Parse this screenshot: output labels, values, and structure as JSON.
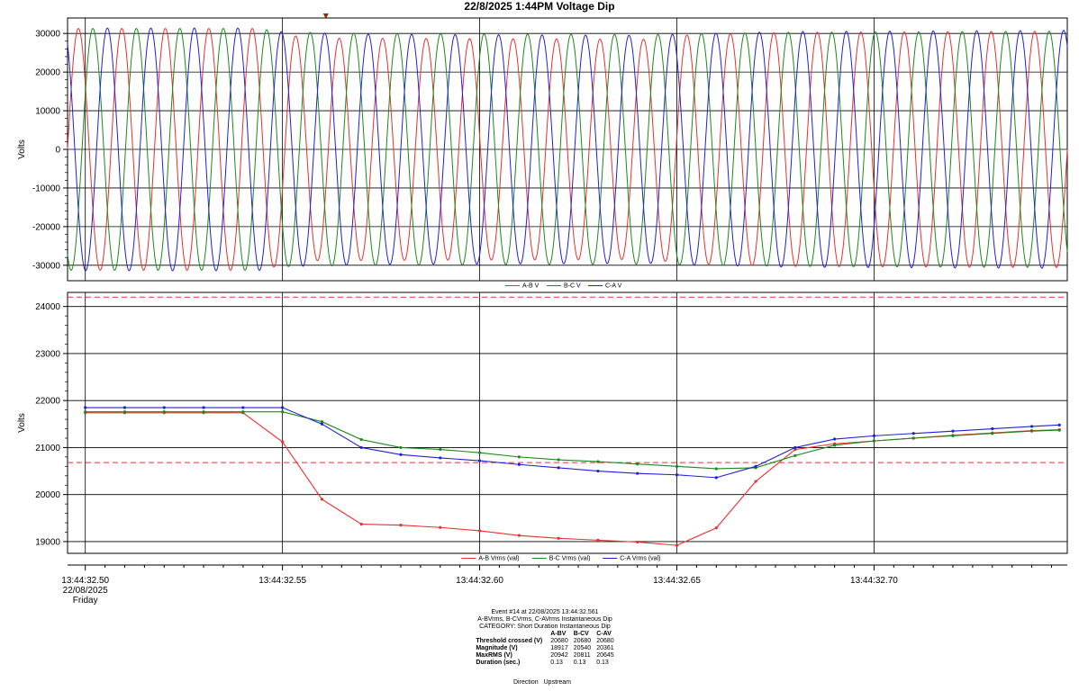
{
  "title": "22/8/2025 1:44PM Voltage Dip",
  "colors": {
    "ab": "#e83030",
    "bc": "#1a8a1a",
    "ca": "#2020d8",
    "threshold": "#e83030",
    "grid": "#000000",
    "frame": "#000000"
  },
  "chart_data": [
    {
      "type": "line",
      "name": "waveform",
      "ylabel": "Volts",
      "ylim": [
        -34000,
        34000
      ],
      "yticks": [
        -30000,
        -20000,
        -10000,
        0,
        10000,
        20000,
        30000
      ],
      "ytick_labels": [
        "-30000",
        "-20000",
        "-10000",
        "0",
        "10000",
        "20000",
        "30000"
      ],
      "grid": true,
      "legend": [
        "A-B V",
        "B-C V",
        "C-A V"
      ],
      "legend_placement": "bottom-center",
      "cycles": 23,
      "series": [
        {
          "name": "A-B V",
          "color": "#e83030",
          "phase_deg": 0,
          "amplitude_env": [
            [
              0,
              31300
            ],
            [
              0.19,
              31300
            ],
            [
              0.215,
              30000
            ],
            [
              0.24,
              28800
            ],
            [
              0.58,
              28500
            ],
            [
              0.62,
              29600
            ],
            [
              0.72,
              30300
            ],
            [
              1.0,
              30600
            ]
          ]
        },
        {
          "name": "B-C V",
          "color": "#1a8a1a",
          "phase_deg": 240,
          "amplitude_env": [
            [
              0,
              31300
            ],
            [
              0.19,
              31300
            ],
            [
              0.215,
              30400
            ],
            [
              0.3,
              30000
            ],
            [
              0.58,
              29700
            ],
            [
              0.62,
              29900
            ],
            [
              0.72,
              30300
            ],
            [
              1.0,
              30600
            ]
          ]
        },
        {
          "name": "C-A V",
          "color": "#2020d8",
          "phase_deg": 120,
          "amplitude_env": [
            [
              0,
              31400
            ],
            [
              0.19,
              31400
            ],
            [
              0.215,
              30400
            ],
            [
              0.3,
              29800
            ],
            [
              0.58,
              29500
            ],
            [
              0.62,
              29900
            ],
            [
              0.72,
              30500
            ],
            [
              1.0,
              30800
            ]
          ]
        }
      ]
    },
    {
      "type": "line",
      "name": "rms",
      "ylabel": "Volts",
      "ylim": [
        18750,
        24300
      ],
      "yticks": [
        19000,
        20000,
        21000,
        22000,
        23000,
        24000
      ],
      "ytick_labels": [
        "19000",
        "20000",
        "21000",
        "22000",
        "23000",
        "24000"
      ],
      "thresholds": [
        24200,
        20680
      ],
      "grid": true,
      "legend": [
        "A-B Vrms (val)",
        "B-C Vrms (val)",
        "C-A Vrms (val)"
      ],
      "legend_placement": "bottom-center",
      "x": [
        32.5,
        32.505,
        32.51,
        32.515,
        32.52,
        32.525,
        32.53,
        32.535,
        32.54,
        32.545,
        32.55,
        32.555,
        32.56,
        32.565,
        32.57,
        32.575,
        32.58,
        32.585,
        32.59,
        32.595,
        32.6,
        32.605,
        32.61,
        32.615,
        32.62,
        32.625,
        32.63,
        32.635,
        32.64,
        32.645,
        32.65,
        32.655,
        32.66,
        32.665,
        32.67,
        32.675,
        32.68,
        32.685,
        32.69,
        32.695,
        32.7,
        32.705,
        32.71,
        32.715,
        32.72,
        32.725,
        32.73,
        32.735,
        32.74,
        32.745
      ],
      "series": [
        {
          "name": "A-B Vrms (val)",
          "color": "#e83030",
          "points": [
            [
              32.5,
              21740
            ],
            [
              32.51,
              21740
            ],
            [
              32.52,
              21740
            ],
            [
              32.53,
              21740
            ],
            [
              32.54,
              21740
            ],
            [
              32.55,
              21120
            ],
            [
              32.56,
              19900
            ],
            [
              32.57,
              19370
            ],
            [
              32.58,
              19350
            ],
            [
              32.59,
              19300
            ],
            [
              32.6,
              19230
            ],
            [
              32.61,
              19130
            ],
            [
              32.62,
              19070
            ],
            [
              32.63,
              19030
            ],
            [
              32.64,
              18990
            ],
            [
              32.65,
              18920
            ],
            [
              32.66,
              19290
            ],
            [
              32.67,
              20280
            ],
            [
              32.68,
              20960
            ],
            [
              32.69,
              21080
            ],
            [
              32.7,
              21140
            ],
            [
              32.71,
              21200
            ],
            [
              32.72,
              21260
            ],
            [
              32.73,
              21310
            ],
            [
              32.74,
              21360
            ],
            [
              32.747,
              21380
            ]
          ]
        },
        {
          "name": "B-C Vrms (val)",
          "color": "#1a8a1a",
          "points": [
            [
              32.5,
              21760
            ],
            [
              32.51,
              21760
            ],
            [
              32.52,
              21760
            ],
            [
              32.53,
              21760
            ],
            [
              32.54,
              21760
            ],
            [
              32.55,
              21760
            ],
            [
              32.56,
              21550
            ],
            [
              32.57,
              21170
            ],
            [
              32.58,
              21000
            ],
            [
              32.59,
              20960
            ],
            [
              32.6,
              20890
            ],
            [
              32.61,
              20800
            ],
            [
              32.62,
              20740
            ],
            [
              32.63,
              20700
            ],
            [
              32.64,
              20650
            ],
            [
              32.65,
              20600
            ],
            [
              32.66,
              20550
            ],
            [
              32.67,
              20570
            ],
            [
              32.68,
              20830
            ],
            [
              32.69,
              21050
            ],
            [
              32.7,
              21140
            ],
            [
              32.71,
              21200
            ],
            [
              32.72,
              21250
            ],
            [
              32.73,
              21300
            ],
            [
              32.74,
              21350
            ],
            [
              32.747,
              21370
            ]
          ]
        },
        {
          "name": "C-A Vrms (val)",
          "color": "#2020d8",
          "points": [
            [
              32.5,
              21850
            ],
            [
              32.51,
              21850
            ],
            [
              32.52,
              21850
            ],
            [
              32.53,
              21850
            ],
            [
              32.54,
              21850
            ],
            [
              32.55,
              21850
            ],
            [
              32.56,
              21500
            ],
            [
              32.57,
              21000
            ],
            [
              32.58,
              20850
            ],
            [
              32.59,
              20780
            ],
            [
              32.6,
              20720
            ],
            [
              32.61,
              20640
            ],
            [
              32.62,
              20570
            ],
            [
              32.63,
              20500
            ],
            [
              32.64,
              20450
            ],
            [
              32.65,
              20420
            ],
            [
              32.66,
              20360
            ],
            [
              32.67,
              20600
            ],
            [
              32.68,
              21000
            ],
            [
              32.69,
              21180
            ],
            [
              32.7,
              21250
            ],
            [
              32.71,
              21300
            ],
            [
              32.72,
              21350
            ],
            [
              32.73,
              21400
            ],
            [
              32.74,
              21450
            ],
            [
              32.747,
              21480
            ]
          ]
        }
      ]
    }
  ],
  "xaxis": {
    "ticks": [
      {
        "t": 32.5,
        "label": "13:44:32.50"
      },
      {
        "t": 32.55,
        "label": "13:44:32.55"
      },
      {
        "t": 32.6,
        "label": "13:44:32.60"
      },
      {
        "t": 32.65,
        "label": "13:44:32.65"
      },
      {
        "t": 32.7,
        "label": "13:44:32.70"
      }
    ],
    "date": "22/08/2025",
    "weekday": "Friday",
    "range": [
      32.4955,
      32.749
    ],
    "event_marker_t": 32.561
  },
  "event": {
    "header": "Event #14 at 22/08/2025 13:44:32.561",
    "subheader": "A-BVrms, B-CVrms, C-AVrms Instantaneous Dip",
    "category": "CATEGORY: Short Duration Instantaneous Dip",
    "columns": [
      "A-BV",
      "B-CV",
      "C-AV"
    ],
    "rows": [
      {
        "label": "Threshold crossed (V)",
        "values": [
          "20680",
          "20680",
          "20680"
        ]
      },
      {
        "label": "Magnitude (V)",
        "values": [
          "18917",
          "20540",
          "20361"
        ]
      },
      {
        "label": "MaxRMS (V)",
        "values": [
          "20942",
          "20811",
          "20645"
        ]
      },
      {
        "label": "Duration (sec.)",
        "values": [
          "0.13",
          "0.13",
          "0.13"
        ]
      }
    ],
    "direction_label": "Direction",
    "direction_value": "Upstream"
  }
}
